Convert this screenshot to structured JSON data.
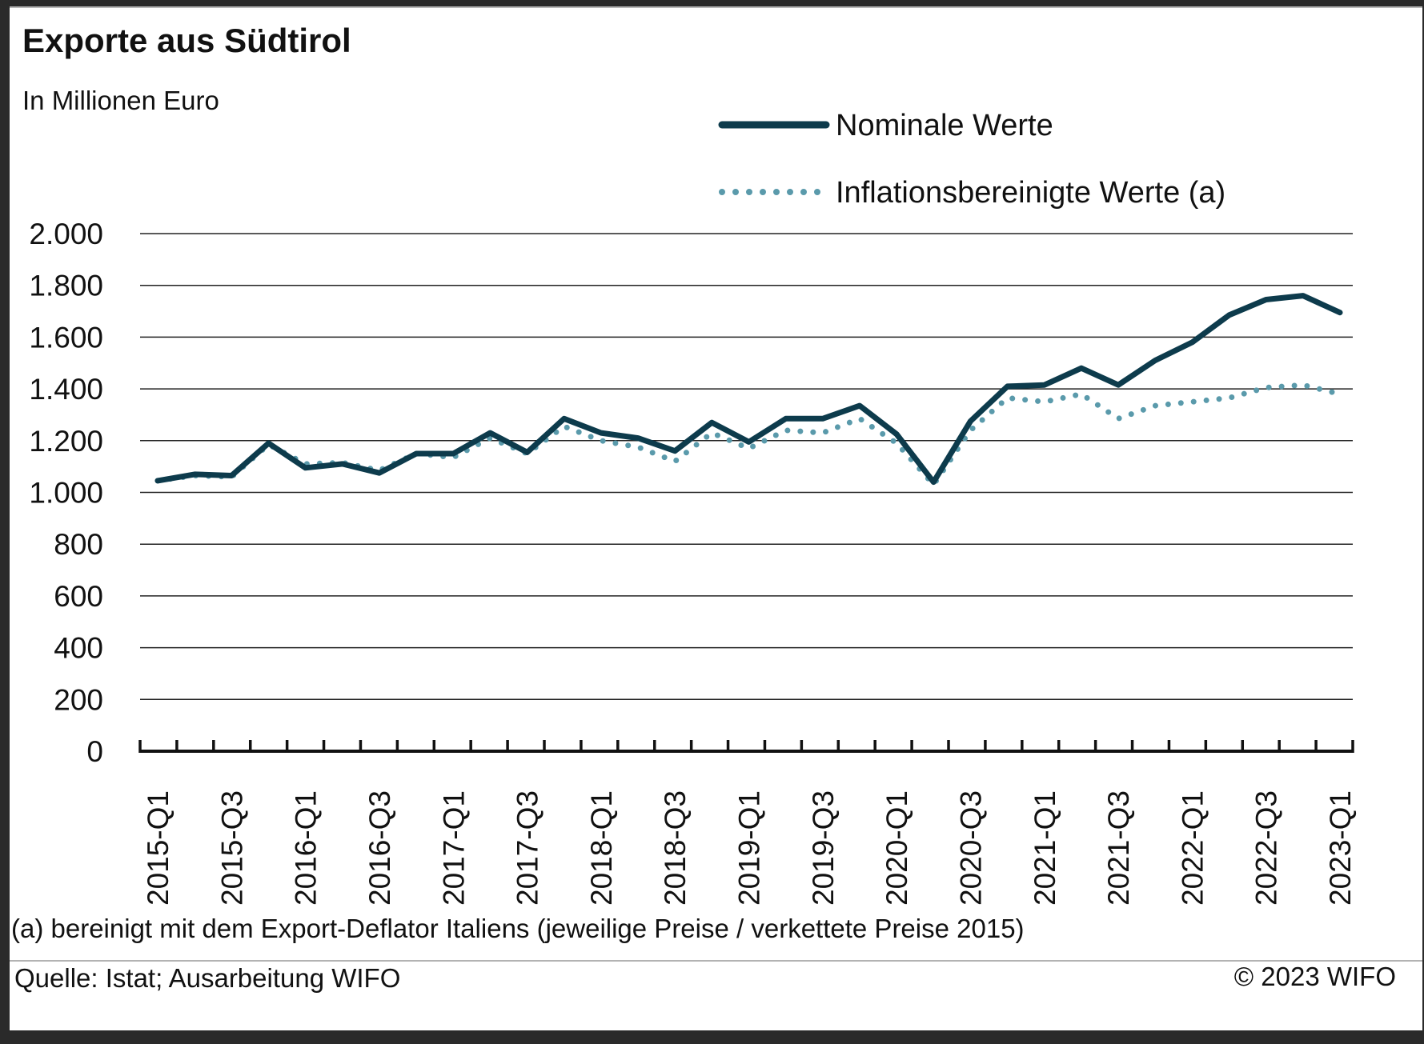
{
  "chart_data": {
    "type": "line",
    "title": "Exporte aus Südtirol",
    "subtitle": "In Millionen Euro",
    "ylim": [
      0,
      2000
    ],
    "yticks": [
      0,
      200,
      400,
      600,
      800,
      1000,
      1200,
      1400,
      1600,
      1800,
      2000
    ],
    "ytick_labels": [
      "0",
      "200",
      "400",
      "600",
      "800",
      "1.000",
      "1.200",
      "1.400",
      "1.600",
      "1.800",
      "2.000"
    ],
    "xtick_labels": [
      "2015-Q1",
      "2015-Q3",
      "2016-Q1",
      "2016-Q3",
      "2017-Q1",
      "2017-Q3",
      "2018-Q1",
      "2018-Q3",
      "2019-Q1",
      "2019-Q3",
      "2020-Q1",
      "2020-Q3",
      "2021-Q1",
      "2021-Q3",
      "2022-Q1",
      "2022-Q3",
      "2023-Q1"
    ],
    "x": [
      "2015-Q1",
      "2015-Q2",
      "2015-Q3",
      "2015-Q4",
      "2016-Q1",
      "2016-Q2",
      "2016-Q3",
      "2016-Q4",
      "2017-Q1",
      "2017-Q2",
      "2017-Q3",
      "2017-Q4",
      "2018-Q1",
      "2018-Q2",
      "2018-Q3",
      "2018-Q4",
      "2019-Q1",
      "2019-Q2",
      "2019-Q3",
      "2019-Q4",
      "2020-Q1",
      "2020-Q2",
      "2020-Q3",
      "2020-Q4",
      "2021-Q1",
      "2021-Q2",
      "2021-Q3",
      "2021-Q4",
      "2022-Q1",
      "2022-Q2",
      "2022-Q3",
      "2022-Q4",
      "2023-Q1"
    ],
    "grid": true,
    "legend_position": "top-right",
    "series": [
      {
        "name": "Nominale Werte",
        "style": "solid",
        "color": "#0d3b4c",
        "values": [
          1045,
          1070,
          1065,
          1190,
          1095,
          1110,
          1075,
          1150,
          1150,
          1230,
          1155,
          1285,
          1230,
          1210,
          1160,
          1270,
          1195,
          1285,
          1285,
          1335,
          1225,
          1040,
          1275,
          1410,
          1415,
          1480,
          1415,
          1510,
          1580,
          1685,
          1745,
          1760,
          1695
        ]
      },
      {
        "name": "Inflationsbereinigte Werte (a)",
        "style": "dotted",
        "color": "#5a9aab",
        "values": [
          1045,
          1065,
          1060,
          1185,
          1110,
          1115,
          1085,
          1150,
          1135,
          1210,
          1150,
          1255,
          1200,
          1175,
          1120,
          1230,
          1170,
          1240,
          1230,
          1285,
          1190,
          1030,
          1240,
          1365,
          1350,
          1380,
          1285,
          1335,
          1350,
          1365,
          1405,
          1415,
          1380
        ]
      }
    ]
  },
  "footnote": "(a) bereinigt mit dem Export-Deflator Italiens (jeweilige Preise / verkettete Preise 2015)",
  "source": "Quelle: Istat; Ausarbeitung WIFO",
  "copyright": "© 2023 WIFO"
}
